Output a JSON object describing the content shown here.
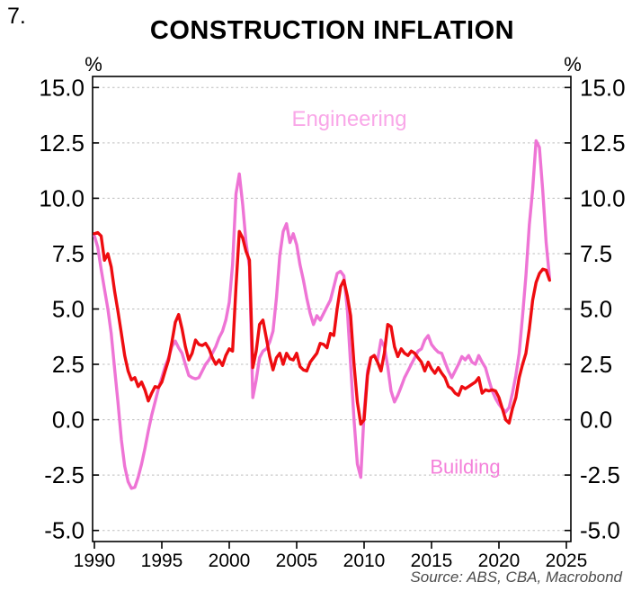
{
  "page": {
    "figure_number": "7.",
    "title": "CONSTRUCTION INFLATION",
    "source": "Source: ABS, CBA, Macrobond"
  },
  "chart_data": {
    "type": "line",
    "title": "CONSTRUCTION INFLATION",
    "unit_label_left": "%",
    "unit_label_right": "%",
    "grid": "dashed-horizontal",
    "legend_position": "on-chart-annotations",
    "xlim": [
      1989.87,
      2025.33
    ],
    "ylim": [
      -5.5,
      15.5
    ],
    "xticks": [
      1990,
      1995,
      2000,
      2005,
      2010,
      2015,
      2020,
      2025
    ],
    "yticks": [
      15.0,
      12.5,
      10.0,
      7.5,
      5.0,
      2.5,
      0.0,
      -2.5,
      -5.0
    ],
    "ytick_labels": [
      "15.0",
      "12.5",
      "10.0",
      "7.5",
      "5.0",
      "2.5",
      "0.0",
      "-2.5",
      "-5.0"
    ],
    "axis_color": "#000000",
    "gridline_color": "#bdbdbd",
    "x_start": 1990.0,
    "x_step": 0.25,
    "series": [
      {
        "name": "Engineering",
        "color": "#ee74d5",
        "label_color": "#f9a7e8",
        "label_font_size": 24,
        "label_pos": {
          "x": 2008.9,
          "y": 13.6
        },
        "values": [
          8.3,
          7.8,
          6.8,
          5.9,
          5.0,
          3.9,
          2.3,
          0.8,
          -0.9,
          -2.1,
          -2.8,
          -3.1,
          -3.05,
          -2.6,
          -2.0,
          -1.3,
          -0.5,
          0.2,
          0.8,
          1.4,
          1.9,
          2.4,
          2.8,
          3.3,
          3.55,
          3.25,
          3.0,
          2.5,
          2.0,
          1.9,
          1.85,
          1.9,
          2.2,
          2.5,
          2.7,
          3.0,
          3.3,
          3.7,
          4.0,
          4.5,
          5.3,
          7.0,
          10.2,
          11.1,
          9.7,
          8.0,
          6.9,
          1.0,
          1.8,
          2.8,
          3.1,
          3.2,
          3.5,
          4.0,
          5.5,
          7.4,
          8.5,
          8.85,
          8.0,
          8.4,
          7.9,
          7.0,
          6.3,
          5.5,
          4.8,
          4.3,
          4.7,
          4.5,
          4.8,
          5.1,
          5.4,
          6.0,
          6.6,
          6.7,
          6.5,
          5.0,
          2.5,
          0.0,
          -2.0,
          -2.6,
          0.3,
          2.2,
          2.8,
          2.9,
          2.7,
          3.6,
          3.3,
          2.4,
          1.3,
          0.8,
          1.1,
          1.5,
          1.9,
          2.2,
          2.5,
          2.8,
          3.1,
          3.2,
          3.6,
          3.8,
          3.4,
          3.2,
          3.05,
          3.0,
          2.6,
          2.2,
          1.9,
          2.2,
          2.5,
          2.85,
          2.7,
          2.9,
          2.6,
          2.5,
          2.9,
          2.6,
          2.35,
          1.8,
          1.3,
          0.95,
          0.7,
          0.5,
          0.35,
          0.55,
          1.2,
          2.0,
          3.0,
          4.7,
          6.5,
          8.8,
          10.4,
          12.6,
          12.3,
          10.3,
          8.0,
          6.4
        ]
      },
      {
        "name": "Building",
        "color": "#ee0c10",
        "label_color": "#f480da",
        "label_font_size": 22,
        "label_pos": {
          "x": 2017.5,
          "y": -2.1
        },
        "values": [
          8.4,
          8.45,
          8.3,
          7.2,
          7.5,
          6.9,
          5.8,
          4.9,
          3.9,
          2.9,
          2.2,
          1.8,
          1.9,
          1.5,
          1.7,
          1.35,
          0.85,
          1.2,
          1.5,
          1.45,
          1.7,
          2.2,
          2.7,
          3.5,
          4.4,
          4.75,
          4.1,
          3.3,
          2.7,
          3.0,
          3.6,
          3.4,
          3.35,
          3.45,
          3.2,
          2.8,
          2.5,
          2.7,
          2.45,
          2.9,
          3.2,
          3.1,
          6.0,
          8.5,
          8.2,
          7.6,
          7.2,
          2.35,
          3.1,
          4.3,
          4.5,
          3.7,
          2.85,
          2.25,
          2.8,
          3.0,
          2.5,
          3.0,
          2.75,
          2.7,
          3.0,
          2.4,
          2.25,
          2.2,
          2.6,
          2.8,
          3.0,
          3.45,
          3.4,
          3.25,
          3.9,
          3.8,
          5.0,
          6.0,
          6.3,
          5.6,
          4.7,
          2.5,
          0.8,
          -0.2,
          0.0,
          2.0,
          2.8,
          2.9,
          2.6,
          2.2,
          3.0,
          4.3,
          4.2,
          3.3,
          2.85,
          3.2,
          3.0,
          2.9,
          3.1,
          3.0,
          2.8,
          2.6,
          2.2,
          2.6,
          2.3,
          2.1,
          2.35,
          2.1,
          1.9,
          1.5,
          1.4,
          1.2,
          1.1,
          1.5,
          1.4,
          1.5,
          1.6,
          1.7,
          1.9,
          1.2,
          1.35,
          1.3,
          1.35,
          1.3,
          1.0,
          0.5,
          0.0,
          -0.15,
          0.5,
          1.0,
          1.9,
          2.5,
          3.0,
          4.1,
          5.4,
          6.2,
          6.6,
          6.8,
          6.75,
          6.3
        ]
      }
    ]
  }
}
